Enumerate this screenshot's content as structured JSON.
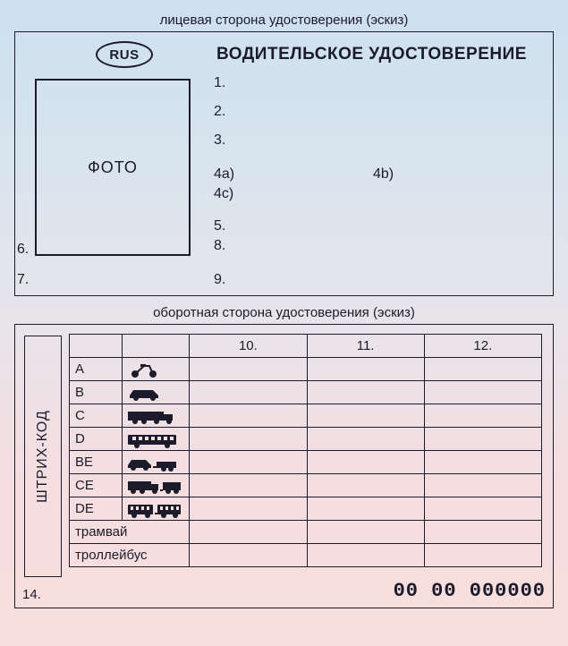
{
  "front": {
    "caption": "лицевая сторона удостоверения (эскиз)",
    "rus": "RUS",
    "title": "ВОДИТЕЛЬСКОЕ УДОСТОВЕРЕНИЕ",
    "photo": "ФОТО",
    "labels": {
      "n1": "1.",
      "n2": "2.",
      "n3": "3.",
      "n4a": "4a)",
      "n4b": "4b)",
      "n4c": "4c)",
      "n5": "5.",
      "n6": "6.",
      "n7": "7.",
      "n8": "8.",
      "n9": "9."
    }
  },
  "back": {
    "caption": "оборотная сторона удостоверения (эскиз)",
    "barcode": "ШТРИХ-КОД",
    "headers": {
      "c10": "10.",
      "c11": "11.",
      "c12": "12."
    },
    "categories": [
      {
        "code": "A",
        "icon": "motorcycle"
      },
      {
        "code": "B",
        "icon": "car"
      },
      {
        "code": "C",
        "icon": "truck"
      },
      {
        "code": "D",
        "icon": "bus"
      },
      {
        "code": "BE",
        "icon": "car-trailer"
      },
      {
        "code": "CE",
        "icon": "truck-trailer"
      },
      {
        "code": "DE",
        "icon": "bus-trailer"
      },
      {
        "code": "трамвай",
        "icon": ""
      },
      {
        "code": "троллейбус",
        "icon": ""
      }
    ],
    "label14": "14.",
    "serial": "00 00 000000"
  },
  "style": {
    "stroke": "#1b1b2b",
    "fill": "#1b1b2b"
  }
}
